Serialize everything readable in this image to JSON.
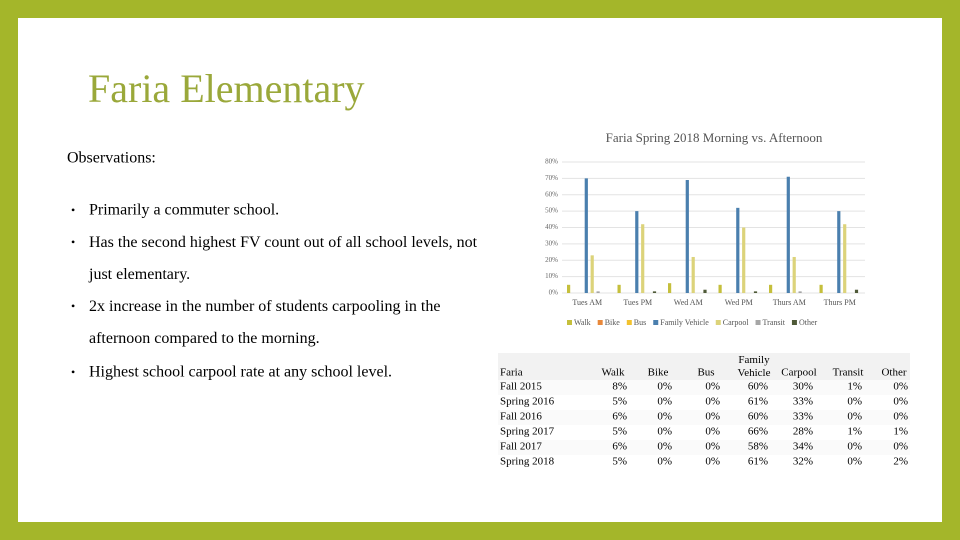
{
  "title": "Faria Elementary",
  "observations": {
    "heading": "Observations:",
    "bullets": [
      "Primarily a commuter school.",
      "Has the second highest FV count out of all school levels, not just elementary.",
      "2x increase in the number of students carpooling in the afternoon compared to the morning.",
      "Highest school carpool rate at any school level."
    ]
  },
  "chart_data": {
    "type": "bar",
    "title": "Faria Spring 2018 Morning vs. Afternoon",
    "categories": [
      "Tues AM",
      "Tues PM",
      "Wed AM",
      "Wed PM",
      "Thurs AM",
      "Thurs PM"
    ],
    "series": [
      {
        "name": "Walk",
        "color": "#c5bf3c",
        "values": [
          5,
          5,
          6,
          5,
          5,
          5
        ]
      },
      {
        "name": "Bike",
        "color": "#e8883a",
        "values": [
          0,
          0,
          0,
          0,
          0,
          0
        ]
      },
      {
        "name": "Bus",
        "color": "#f2c22e",
        "values": [
          0,
          0,
          0,
          0,
          0,
          0
        ]
      },
      {
        "name": "Family Vehicle",
        "color": "#4a7fae",
        "values": [
          70,
          50,
          69,
          52,
          71,
          50
        ]
      },
      {
        "name": "Carpool",
        "color": "#dcd37a",
        "values": [
          23,
          42,
          22,
          40,
          22,
          42
        ]
      },
      {
        "name": "Transit",
        "color": "#a6a6a6",
        "values": [
          1,
          0,
          0,
          0,
          1,
          0
        ]
      },
      {
        "name": "Other",
        "color": "#4f5a38",
        "values": [
          0,
          1,
          2,
          1,
          0,
          2
        ]
      }
    ],
    "ylim": [
      0,
      80
    ],
    "yticks": [
      {
        "value": 0,
        "label": "0%"
      },
      {
        "value": 10,
        "label": "10%"
      },
      {
        "value": 20,
        "label": "20%"
      },
      {
        "value": 30,
        "label": "30%"
      },
      {
        "value": 40,
        "label": "40%"
      },
      {
        "value": 50,
        "label": "50%"
      },
      {
        "value": 60,
        "label": "60%"
      },
      {
        "value": 70,
        "label": "70%"
      },
      {
        "value": 80,
        "label": "80%"
      }
    ],
    "grid": true,
    "legend": "bottom"
  },
  "table": {
    "header": [
      "Faria",
      "Walk",
      "Bike",
      "Bus",
      "Family Vehicle",
      "Carpool",
      "Transit",
      "Other"
    ],
    "rows": [
      [
        "Fall 2015",
        "8%",
        "0%",
        "0%",
        "60%",
        "30%",
        "1%",
        "0%"
      ],
      [
        "Spring 2016",
        "5%",
        "0%",
        "0%",
        "61%",
        "33%",
        "0%",
        "0%"
      ],
      [
        "Fall 2016",
        "6%",
        "0%",
        "0%",
        "60%",
        "33%",
        "0%",
        "0%"
      ],
      [
        "Spring 2017",
        "5%",
        "0%",
        "0%",
        "66%",
        "28%",
        "1%",
        "1%"
      ],
      [
        "Fall 2017",
        "6%",
        "0%",
        "0%",
        "58%",
        "34%",
        "0%",
        "0%"
      ],
      [
        "Spring 2018",
        "5%",
        "0%",
        "0%",
        "61%",
        "32%",
        "0%",
        "2%"
      ]
    ]
  }
}
